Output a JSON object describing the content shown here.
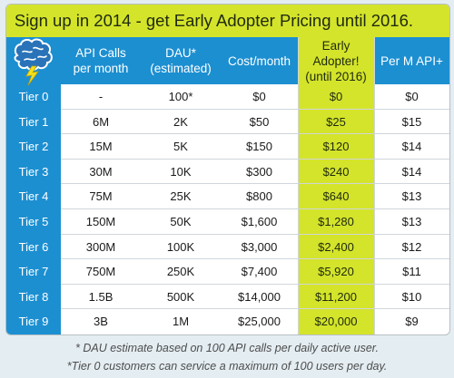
{
  "banner": {
    "text": "Sign up in 2014 - get Early Adopter Pricing until 2016."
  },
  "colors": {
    "accent_blue": "#1c8fd1",
    "accent_lime": "#d4e42a",
    "background": "#e4edf2"
  },
  "logo": {
    "icon": "brain-lightning-icon"
  },
  "table": {
    "headers": [
      "API Calls\nper month",
      "DAU*\n(estimated)",
      "Cost/month",
      "Early Adopter!\n(until 2016)",
      "Per M API+"
    ],
    "rows": [
      {
        "tier": "Tier 0",
        "calls": "-",
        "dau": "100*",
        "cost": "$0",
        "early": "$0",
        "perm": "$0"
      },
      {
        "tier": "Tier 1",
        "calls": "6M",
        "dau": "2K",
        "cost": "$50",
        "early": "$25",
        "perm": "$15"
      },
      {
        "tier": "Tier 2",
        "calls": "15M",
        "dau": "5K",
        "cost": "$150",
        "early": "$120",
        "perm": "$14"
      },
      {
        "tier": "Tier 3",
        "calls": "30M",
        "dau": "10K",
        "cost": "$300",
        "early": "$240",
        "perm": "$14"
      },
      {
        "tier": "Tier 4",
        "calls": "75M",
        "dau": "25K",
        "cost": "$800",
        "early": "$640",
        "perm": "$13"
      },
      {
        "tier": "Tier 5",
        "calls": "150M",
        "dau": "50K",
        "cost": "$1,600",
        "early": "$1,280",
        "perm": "$13"
      },
      {
        "tier": "Tier 6",
        "calls": "300M",
        "dau": "100K",
        "cost": "$3,000",
        "early": "$2,400",
        "perm": "$12"
      },
      {
        "tier": "Tier 7",
        "calls": "750M",
        "dau": "250K",
        "cost": "$7,400",
        "early": "$5,920",
        "perm": "$11"
      },
      {
        "tier": "Tier 8",
        "calls": "1.5B",
        "dau": "500K",
        "cost": "$14,000",
        "early": "$11,200",
        "perm": "$10"
      },
      {
        "tier": "Tier 9",
        "calls": "3B",
        "dau": "1M",
        "cost": "$25,000",
        "early": "$20,000",
        "perm": "$9"
      }
    ]
  },
  "footnotes": [
    "* DAU estimate based on 100 API calls per daily active user.",
    "*Tier 0 customers can service a maximum of 100 users per day."
  ]
}
